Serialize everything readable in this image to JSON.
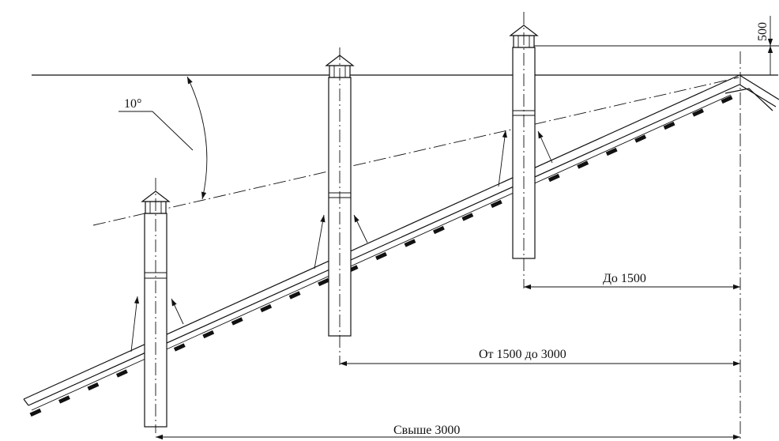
{
  "labels": {
    "angle": "10°",
    "height": "500",
    "up_to_1500": "До 1500",
    "from_1500_to_3000": "От 1500 до 3000",
    "over_3000": "Свыше 3000"
  }
}
